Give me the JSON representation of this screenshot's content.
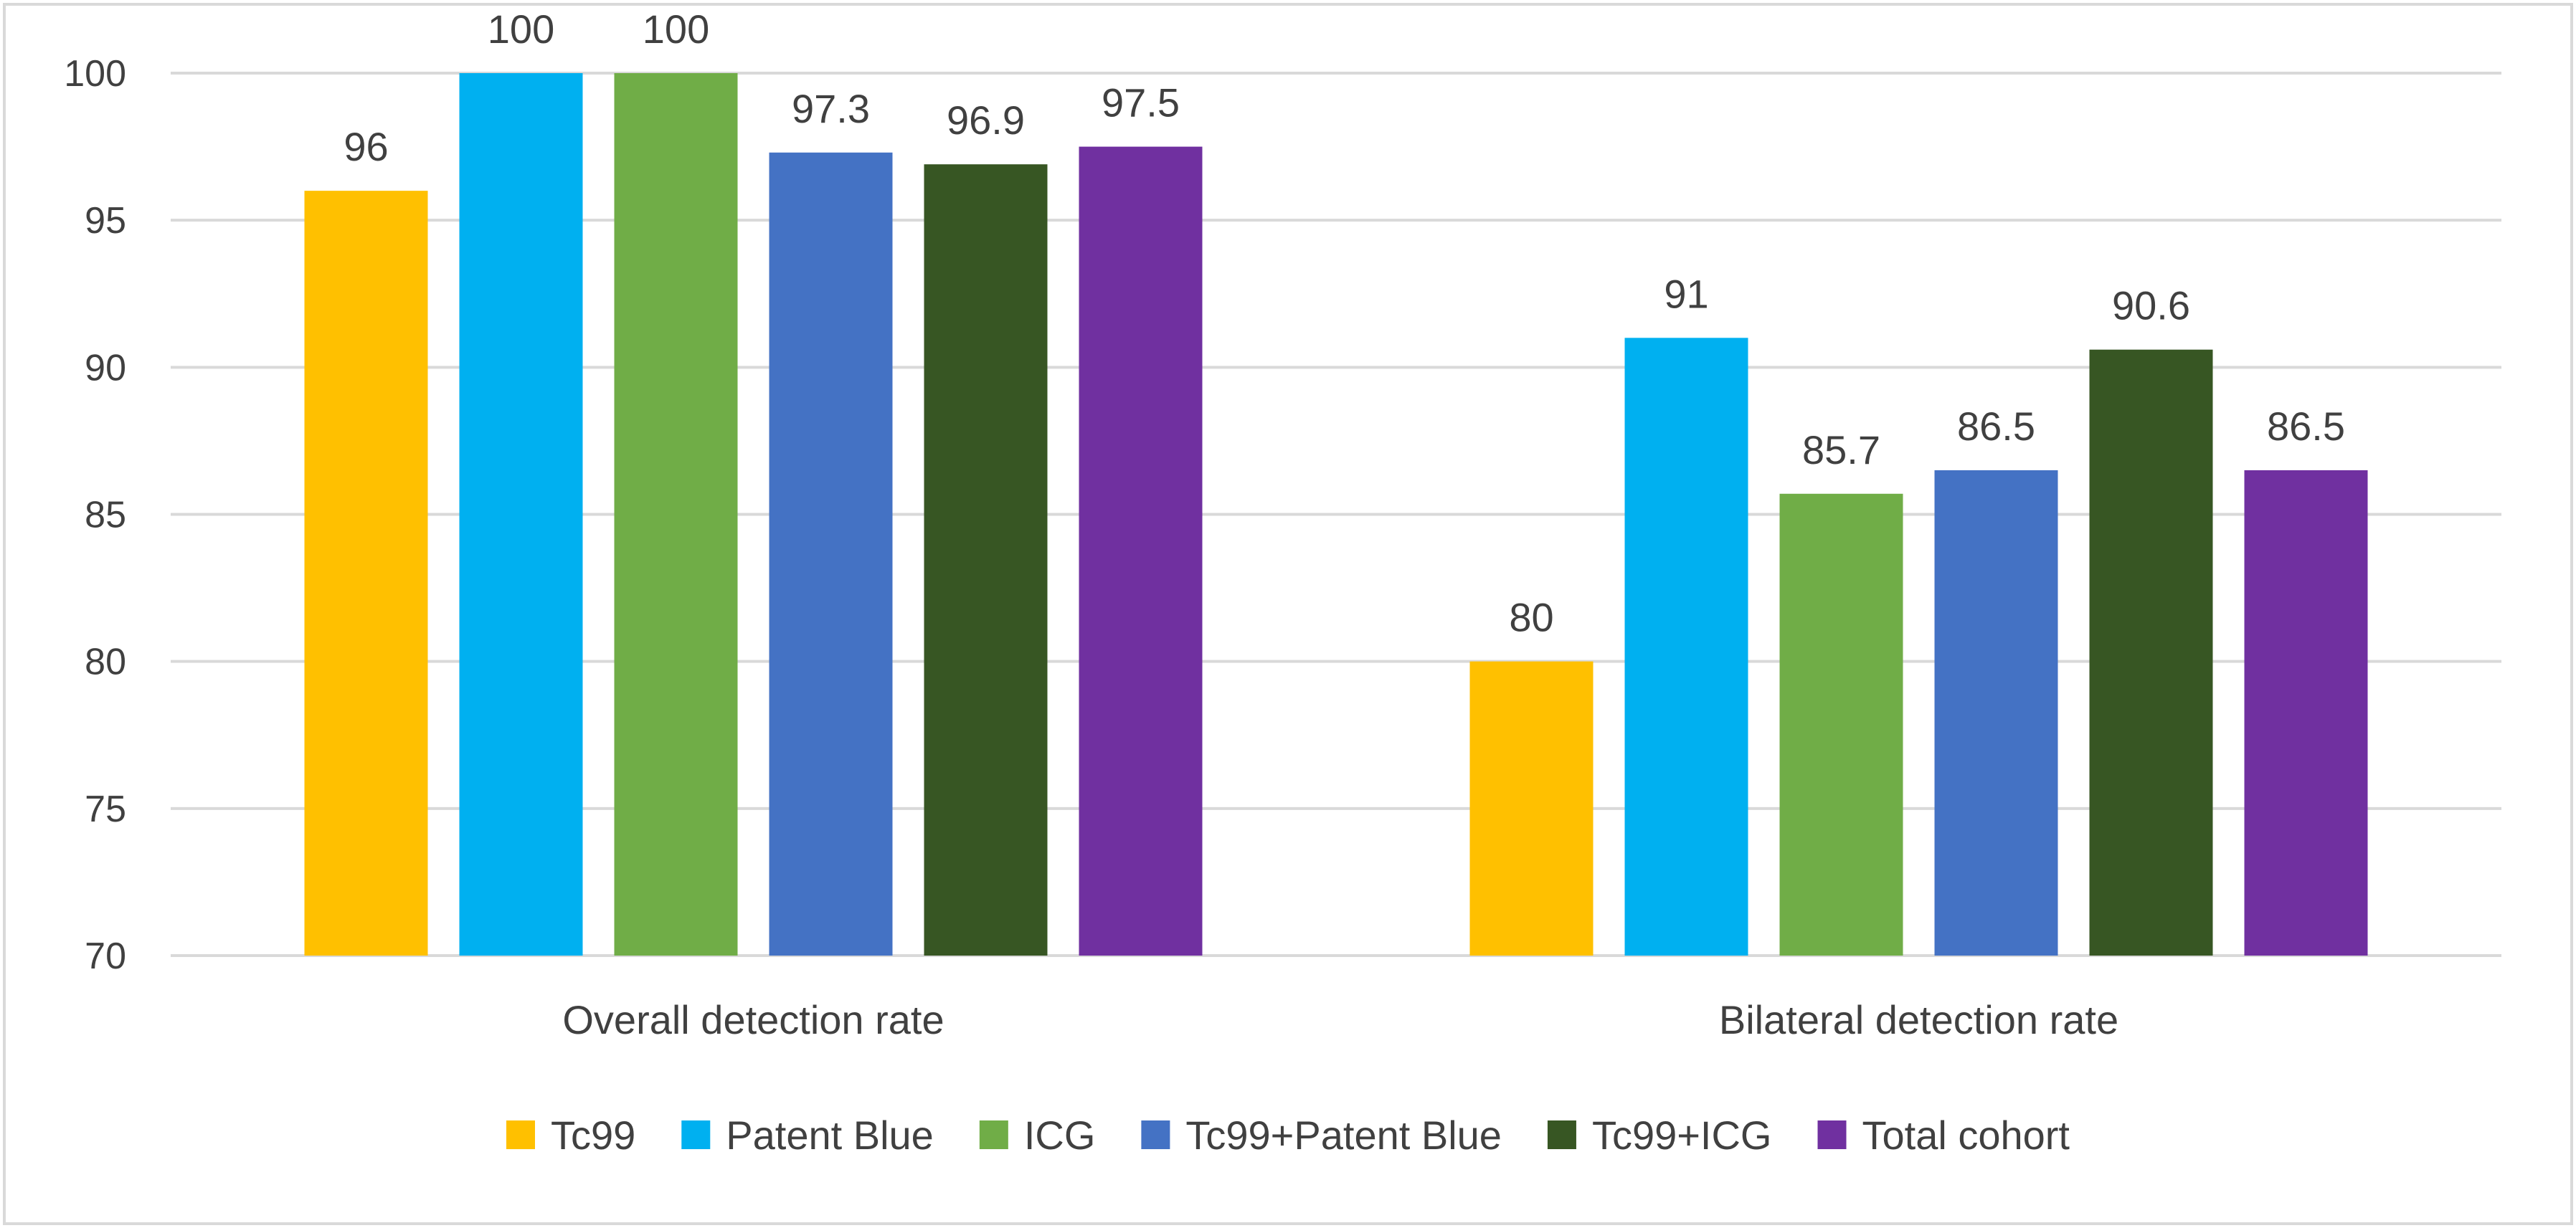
{
  "chart_data": {
    "type": "bar",
    "title": "",
    "xlabel": "",
    "ylabel": "",
    "categories": [
      "Overall detection rate",
      "Bilateral detection rate"
    ],
    "ylim": [
      70,
      100
    ],
    "yticks": [
      70,
      75,
      80,
      85,
      90,
      95,
      100
    ],
    "grid": true,
    "legend_position": "bottom",
    "series": [
      {
        "name": "Tc99",
        "color": "#FFC000",
        "values": [
          96,
          80
        ]
      },
      {
        "name": "Patent Blue",
        "color": "#00B0F0",
        "values": [
          100,
          91
        ]
      },
      {
        "name": "ICG",
        "color": "#70AD47",
        "values": [
          100,
          85.7
        ]
      },
      {
        "name": "Tc99+Patent Blue",
        "color": "#4472C4",
        "values": [
          97.3,
          86.5
        ]
      },
      {
        "name": "Tc99+ICG",
        "color": "#375623",
        "values": [
          96.9,
          90.6
        ]
      },
      {
        "name": "Total cohort",
        "color": "#7030A0",
        "values": [
          97.5,
          86.5
        ]
      }
    ]
  }
}
